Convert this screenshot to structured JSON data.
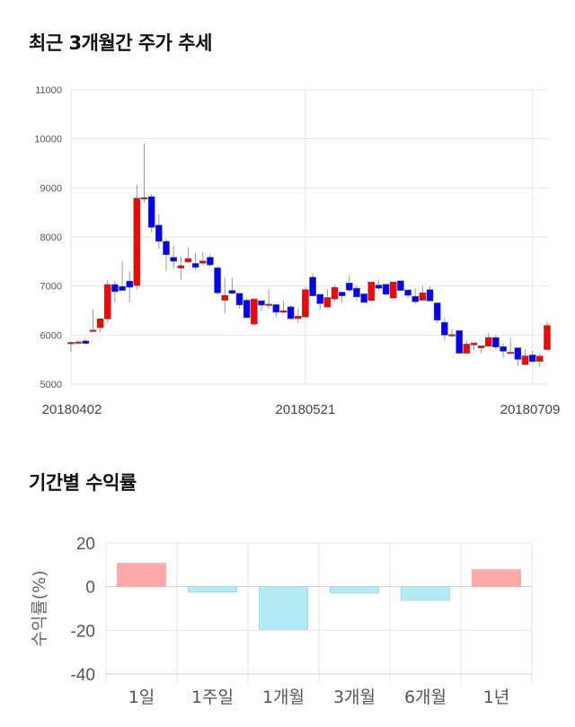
{
  "titles": {
    "price": "최근 3개월간 주가 추세",
    "returns": "기간별 수익률"
  },
  "colors": {
    "up": "#ff0000",
    "down": "#0000ff",
    "wick": "#999999",
    "positive_bar": "#ffa8a8",
    "negative_bar": "#b3ebf5",
    "grid": "#e6e6e6"
  },
  "chart_data": [
    {
      "type": "candlestick",
      "title": "최근 3개월간 주가 추세",
      "ylim": [
        5000,
        11000
      ],
      "yticks": [
        5000,
        6000,
        7000,
        8000,
        9000,
        10000,
        11000
      ],
      "xticks": [
        {
          "index": 0,
          "label": "20180402"
        },
        {
          "index": 32,
          "label": "20180521"
        },
        {
          "index": 63,
          "label": "20180709"
        }
      ],
      "grid": true,
      "candles": [
        {
          "o": 5850,
          "h": 5870,
          "l": 5660,
          "c": 5850
        },
        {
          "o": 5860,
          "h": 5890,
          "l": 5800,
          "c": 5860
        },
        {
          "o": 5880,
          "h": 5920,
          "l": 5800,
          "c": 5830
        },
        {
          "o": 6090,
          "h": 6525,
          "l": 6050,
          "c": 6100
        },
        {
          "o": 6150,
          "h": 6350,
          "l": 6050,
          "c": 6330
        },
        {
          "o": 6330,
          "h": 7130,
          "l": 6250,
          "c": 7030
        },
        {
          "o": 7030,
          "h": 7100,
          "l": 6660,
          "c": 6885
        },
        {
          "o": 6990,
          "h": 7510,
          "l": 6910,
          "c": 6910
        },
        {
          "o": 7100,
          "h": 7290,
          "l": 6665,
          "c": 6975
        },
        {
          "o": 7010,
          "h": 9070,
          "l": 6930,
          "c": 8790
        },
        {
          "o": 8800,
          "h": 9910,
          "l": 8690,
          "c": 8800
        },
        {
          "o": 8820,
          "h": 8880,
          "l": 8090,
          "c": 8195
        },
        {
          "o": 8240,
          "h": 8460,
          "l": 7760,
          "c": 7910
        },
        {
          "o": 7910,
          "h": 7960,
          "l": 7310,
          "c": 7640
        },
        {
          "o": 7585,
          "h": 7820,
          "l": 7360,
          "c": 7505
        },
        {
          "o": 7365,
          "h": 7600,
          "l": 7130,
          "c": 7415
        },
        {
          "o": 7490,
          "h": 7790,
          "l": 7470,
          "c": 7560
        },
        {
          "o": 7460,
          "h": 7670,
          "l": 7320,
          "c": 7380
        },
        {
          "o": 7465,
          "h": 7690,
          "l": 7410,
          "c": 7510
        },
        {
          "o": 7585,
          "h": 7640,
          "l": 7390,
          "c": 7430
        },
        {
          "o": 7370,
          "h": 7410,
          "l": 6810,
          "c": 6860
        },
        {
          "o": 6710,
          "h": 7180,
          "l": 6445,
          "c": 6810
        },
        {
          "o": 6910,
          "h": 7165,
          "l": 6830,
          "c": 6850
        },
        {
          "o": 6850,
          "h": 6860,
          "l": 6540,
          "c": 6615
        },
        {
          "o": 6710,
          "h": 6750,
          "l": 6355,
          "c": 6355
        },
        {
          "o": 6225,
          "h": 6735,
          "l": 6190,
          "c": 6735
        },
        {
          "o": 6700,
          "h": 6700,
          "l": 6495,
          "c": 6610
        },
        {
          "o": 6630,
          "h": 6935,
          "l": 6545,
          "c": 6630
        },
        {
          "o": 6620,
          "h": 6620,
          "l": 6370,
          "c": 6465
        },
        {
          "o": 6465,
          "h": 6700,
          "l": 6445,
          "c": 6495
        },
        {
          "o": 6575,
          "h": 6605,
          "l": 6310,
          "c": 6335
        },
        {
          "o": 6335,
          "h": 6550,
          "l": 6250,
          "c": 6385
        },
        {
          "o": 6370,
          "h": 6980,
          "l": 6340,
          "c": 6925
        },
        {
          "o": 7180,
          "h": 7260,
          "l": 6800,
          "c": 6800
        },
        {
          "o": 6830,
          "h": 6830,
          "l": 6515,
          "c": 6640
        },
        {
          "o": 6570,
          "h": 6940,
          "l": 6570,
          "c": 6765
        },
        {
          "o": 6735,
          "h": 7030,
          "l": 6675,
          "c": 6970
        },
        {
          "o": 6875,
          "h": 6875,
          "l": 6655,
          "c": 6800
        },
        {
          "o": 7060,
          "h": 7215,
          "l": 6875,
          "c": 6915
        },
        {
          "o": 6955,
          "h": 7005,
          "l": 6705,
          "c": 6780
        },
        {
          "o": 6840,
          "h": 6840,
          "l": 6665,
          "c": 6665
        },
        {
          "o": 6705,
          "h": 7080,
          "l": 6705,
          "c": 7080
        },
        {
          "o": 7020,
          "h": 7135,
          "l": 6915,
          "c": 6955
        },
        {
          "o": 7035,
          "h": 7035,
          "l": 6830,
          "c": 6830
        },
        {
          "o": 6755,
          "h": 7080,
          "l": 6755,
          "c": 7080
        },
        {
          "o": 7105,
          "h": 7105,
          "l": 6910,
          "c": 6910
        },
        {
          "o": 6920,
          "h": 6920,
          "l": 6755,
          "c": 6810
        },
        {
          "o": 6790,
          "h": 6955,
          "l": 6640,
          "c": 6680
        },
        {
          "o": 6710,
          "h": 7005,
          "l": 6710,
          "c": 6860
        },
        {
          "o": 6925,
          "h": 6995,
          "l": 6695,
          "c": 6695
        },
        {
          "o": 6655,
          "h": 6655,
          "l": 6245,
          "c": 6305
        },
        {
          "o": 6260,
          "h": 6350,
          "l": 5890,
          "c": 6000
        },
        {
          "o": 6000,
          "h": 6120,
          "l": 5955,
          "c": 6010
        },
        {
          "o": 6090,
          "h": 6090,
          "l": 5630,
          "c": 5630
        },
        {
          "o": 5630,
          "h": 5895,
          "l": 5620,
          "c": 5815
        },
        {
          "o": 5800,
          "h": 5840,
          "l": 5695,
          "c": 5840
        },
        {
          "o": 5740,
          "h": 5780,
          "l": 5630,
          "c": 5780
        },
        {
          "o": 5775,
          "h": 6045,
          "l": 5775,
          "c": 5950
        },
        {
          "o": 5950,
          "h": 6000,
          "l": 5705,
          "c": 5755
        },
        {
          "o": 5765,
          "h": 5835,
          "l": 5540,
          "c": 5670
        },
        {
          "o": 5650,
          "h": 5940,
          "l": 5650,
          "c": 5650
        },
        {
          "o": 5740,
          "h": 5740,
          "l": 5370,
          "c": 5505
        },
        {
          "o": 5400,
          "h": 5710,
          "l": 5385,
          "c": 5575
        },
        {
          "o": 5595,
          "h": 5680,
          "l": 5460,
          "c": 5460
        },
        {
          "o": 5465,
          "h": 5620,
          "l": 5355,
          "c": 5570
        },
        {
          "o": 5705,
          "h": 6275,
          "l": 5705,
          "c": 6195
        }
      ]
    },
    {
      "type": "bar",
      "title": "기간별 수익률",
      "ylabel": "수익률(%)",
      "ylim": [
        -40,
        20
      ],
      "yticks": [
        20,
        0,
        -20,
        -40
      ],
      "grid": true,
      "categories": [
        "1일",
        "1주일",
        "1개월",
        "3개월",
        "6개월",
        "1년"
      ],
      "values": [
        10.7,
        -2.5,
        -19.5,
        -2.9,
        -6.2,
        7.8
      ]
    }
  ]
}
